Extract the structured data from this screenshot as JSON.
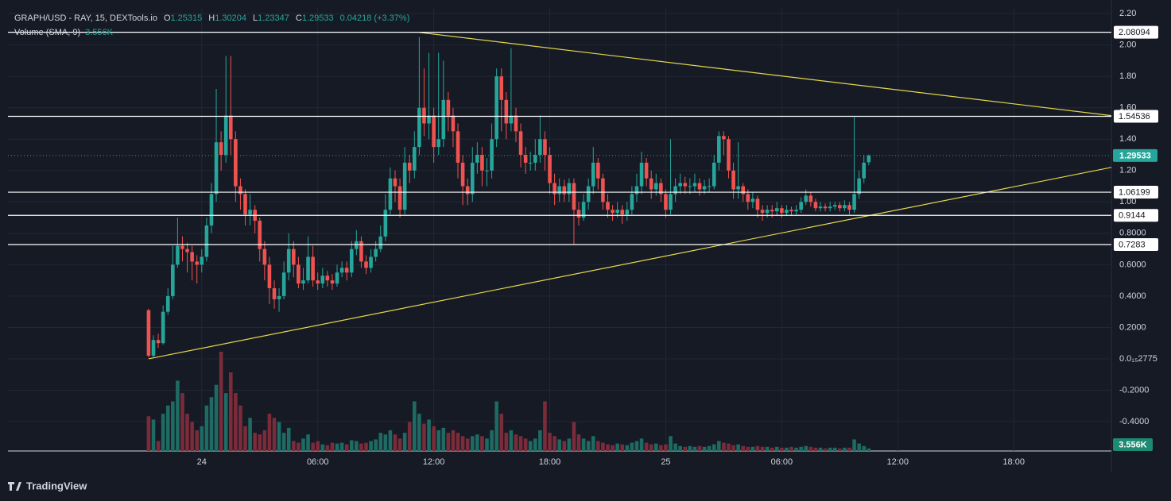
{
  "header": {
    "symbol": "GRAPH/USD - RAY, 15, DEXTools.io",
    "o_label": "O",
    "open": 1.25315,
    "h_label": "H",
    "high": 1.30204,
    "l_label": "L",
    "low": 1.23347,
    "c_label": "C",
    "close": 1.29533,
    "change": "0.04218 (+3.37%)",
    "volume_label": "Volume (SMA, 9)",
    "volume_value": "3.556K"
  },
  "footer": {
    "brand": "TradingView"
  },
  "chart_data": {
    "type": "candlestick",
    "grid": true,
    "colors": {
      "up": "#26a69a",
      "down": "#ef5350",
      "volume_up": "#1d6b63",
      "volume_down": "#7a2c3a",
      "trendline": "#e5d84a",
      "level": "#ffffff"
    },
    "xlim": [
      -29.1,
      199.2
    ],
    "xticks": [
      {
        "value": 11,
        "label": "24"
      },
      {
        "value": 35,
        "label": "06:00"
      },
      {
        "value": 59,
        "label": "12:00"
      },
      {
        "value": 83,
        "label": "18:00"
      },
      {
        "value": 107,
        "label": "25"
      },
      {
        "value": 131,
        "label": "06:00"
      },
      {
        "value": 155,
        "label": "12:00"
      },
      {
        "value": 179,
        "label": "18:00"
      }
    ],
    "ylim": [
      -0.587,
      2.236
    ],
    "yticks": [
      {
        "value": 2.2,
        "label": "2.20"
      },
      {
        "value": 2.0,
        "label": "2.00"
      },
      {
        "value": 1.8,
        "label": "1.80"
      },
      {
        "value": 1.6,
        "label": "1.60"
      },
      {
        "value": 1.4,
        "label": "1.40"
      },
      {
        "value": 1.2,
        "label": "1.20"
      },
      {
        "value": 1.0,
        "label": "1.00"
      },
      {
        "value": 0.8,
        "label": "0.8000"
      },
      {
        "value": 0.6,
        "label": "0.6000"
      },
      {
        "value": 0.4,
        "label": "0.4000"
      },
      {
        "value": 0.2,
        "label": "0.2000"
      },
      {
        "value": 0,
        "label": "0.0₁₅2775"
      },
      {
        "value": -0.2,
        "label": "-0.2000"
      },
      {
        "value": -0.4,
        "label": "-0.4000"
      }
    ],
    "open": [
      0.31,
      0.02,
      0.12,
      0.1,
      0.3,
      0.4,
      0.6,
      0.72,
      0.7,
      0.68,
      0.62,
      0.6,
      0.65,
      0.85,
      1.05,
      1.38,
      1.3,
      1.55,
      1.4,
      1.1,
      1.05,
      0.92,
      0.95,
      0.88,
      0.7,
      0.6,
      0.45,
      0.38,
      0.4,
      0.55,
      0.7,
      0.6,
      0.48,
      0.5,
      0.65,
      0.5,
      0.48,
      0.53,
      0.5,
      0.48,
      0.55,
      0.58,
      0.55,
      0.7,
      0.75,
      0.62,
      0.58,
      0.65,
      0.7,
      0.78,
      0.95,
      1.15,
      1.1,
      0.95,
      1.25,
      1.2,
      1.35,
      1.6,
      1.5,
      1.55,
      1.35,
      1.4,
      1.65,
      1.55,
      1.45,
      1.25,
      1.1,
      1.05,
      1.25,
      1.3,
      1.2,
      1.2,
      1.4,
      1.8,
      1.65,
      1.5,
      1.55,
      1.45,
      1.3,
      1.25,
      1.25,
      1.3,
      1.4,
      1.3,
      1.12,
      1.05,
      1.1,
      1.05,
      1.12,
      0.95,
      0.9,
      1.0,
      1.1,
      1.25,
      1.15,
      1.0,
      0.95,
      0.93,
      0.95,
      0.92,
      0.95,
      1.05,
      1.1,
      1.25,
      1.15,
      1.08,
      1.12,
      1.05,
      0.95,
      1.05,
      1.1,
      1.12,
      1.1,
      1.1,
      1.12,
      1.08,
      1.1,
      1.1,
      1.25,
      1.42,
      1.4,
      1.2,
      1.08,
      1.1,
      1.05,
      1.0,
      1.02,
      0.95,
      0.93,
      0.95,
      0.94,
      0.96,
      0.93,
      0.95,
      0.94,
      0.95,
      1.0,
      1.04,
      1.0,
      0.96,
      0.97,
      0.96,
      0.97,
      0.98,
      0.96,
      0.98,
      0.95,
      1.05,
      1.15,
      1.25315
    ],
    "high": [
      0.32,
      0.15,
      0.16,
      0.34,
      0.45,
      0.72,
      0.9,
      0.78,
      0.74,
      0.72,
      0.66,
      0.7,
      0.9,
      1.12,
      1.72,
      1.45,
      1.93,
      1.93,
      1.45,
      1.15,
      1.08,
      1.05,
      0.98,
      0.9,
      0.75,
      0.65,
      0.5,
      0.45,
      0.62,
      0.8,
      0.75,
      0.65,
      0.58,
      0.78,
      0.72,
      0.55,
      0.58,
      0.56,
      0.54,
      0.6,
      0.62,
      0.62,
      0.75,
      0.82,
      0.78,
      0.66,
      0.7,
      0.75,
      0.85,
      1.05,
      1.22,
      1.2,
      1.15,
      1.35,
      1.3,
      1.45,
      2.05,
      1.85,
      1.95,
      1.6,
      1.95,
      1.9,
      1.7,
      1.6,
      1.5,
      1.3,
      1.15,
      1.35,
      1.38,
      1.35,
      1.28,
      1.5,
      1.85,
      1.85,
      1.7,
      1.98,
      1.6,
      1.5,
      1.35,
      1.32,
      1.4,
      1.55,
      1.45,
      1.35,
      1.18,
      1.15,
      1.14,
      1.15,
      1.15,
      1.0,
      1.05,
      1.15,
      1.35,
      1.28,
      1.18,
      1.05,
      0.98,
      1.0,
      0.98,
      1.0,
      1.1,
      1.18,
      1.32,
      1.28,
      1.2,
      1.18,
      1.15,
      1.08,
      1.4,
      1.15,
      1.18,
      1.16,
      1.15,
      1.18,
      1.15,
      1.14,
      1.15,
      1.3,
      1.45,
      1.45,
      1.42,
      1.25,
      1.38,
      1.12,
      1.08,
      1.06,
      1.04,
      0.98,
      0.98,
      0.98,
      1.0,
      0.98,
      0.98,
      0.97,
      0.98,
      1.03,
      1.08,
      1.06,
      1.02,
      1.0,
      0.99,
      1.0,
      1.0,
      1.0,
      1.01,
      1.0,
      1.54,
      1.2,
      1.3,
      1.30204
    ],
    "low": [
      0.01,
      0.01,
      0.07,
      0.09,
      0.28,
      0.38,
      0.58,
      0.62,
      0.55,
      0.5,
      0.48,
      0.55,
      0.62,
      0.8,
      1.0,
      1.2,
      1.25,
      1.3,
      1.0,
      0.95,
      0.85,
      0.85,
      0.8,
      0.62,
      0.5,
      0.35,
      0.32,
      0.3,
      0.38,
      0.5,
      0.52,
      0.45,
      0.44,
      0.48,
      0.46,
      0.44,
      0.45,
      0.46,
      0.44,
      0.46,
      0.52,
      0.5,
      0.52,
      0.66,
      0.58,
      0.54,
      0.55,
      0.62,
      0.68,
      0.75,
      0.92,
      1.0,
      0.9,
      0.92,
      1.12,
      1.15,
      1.3,
      1.42,
      1.4,
      1.25,
      1.3,
      1.35,
      1.45,
      1.35,
      1.15,
      0.98,
      0.98,
      1.0,
      1.18,
      1.1,
      1.1,
      1.15,
      1.35,
      1.45,
      1.4,
      1.45,
      1.38,
      1.22,
      1.18,
      1.2,
      1.2,
      1.25,
      1.2,
      1.05,
      0.98,
      1.0,
      1.0,
      1.0,
      0.73,
      0.85,
      0.88,
      0.95,
      1.05,
      1.08,
      0.95,
      0.9,
      0.88,
      0.9,
      0.86,
      0.88,
      0.92,
      1.0,
      1.05,
      1.1,
      1.02,
      1.04,
      1.0,
      0.9,
      0.92,
      1.0,
      1.05,
      1.05,
      1.05,
      1.06,
      1.04,
      1.05,
      1.06,
      1.08,
      1.2,
      1.3,
      1.15,
      1.02,
      1.02,
      1.0,
      0.95,
      0.96,
      0.9,
      0.88,
      0.9,
      0.9,
      0.91,
      0.9,
      0.91,
      0.91,
      0.92,
      0.93,
      0.98,
      0.97,
      0.94,
      0.94,
      0.94,
      0.94,
      0.95,
      0.94,
      0.94,
      0.92,
      0.93,
      1.02,
      1.12,
      1.23347
    ],
    "close": [
      0.02,
      0.12,
      0.1,
      0.3,
      0.4,
      0.6,
      0.72,
      0.7,
      0.68,
      0.62,
      0.6,
      0.65,
      0.85,
      1.05,
      1.38,
      1.3,
      1.55,
      1.4,
      1.1,
      1.05,
      0.92,
      0.95,
      0.88,
      0.7,
      0.6,
      0.45,
      0.38,
      0.4,
      0.55,
      0.7,
      0.6,
      0.48,
      0.5,
      0.65,
      0.5,
      0.48,
      0.53,
      0.5,
      0.48,
      0.55,
      0.58,
      0.55,
      0.7,
      0.75,
      0.62,
      0.58,
      0.65,
      0.7,
      0.78,
      0.95,
      1.15,
      1.1,
      0.95,
      1.25,
      1.2,
      1.35,
      1.6,
      1.5,
      1.55,
      1.35,
      1.4,
      1.65,
      1.55,
      1.45,
      1.25,
      1.1,
      1.05,
      1.25,
      1.3,
      1.2,
      1.2,
      1.4,
      1.8,
      1.65,
      1.5,
      1.55,
      1.45,
      1.3,
      1.25,
      1.25,
      1.3,
      1.4,
      1.3,
      1.12,
      1.05,
      1.1,
      1.05,
      1.12,
      0.95,
      0.9,
      1.0,
      1.1,
      1.25,
      1.15,
      1.0,
      0.95,
      0.93,
      0.95,
      0.92,
      0.95,
      1.05,
      1.1,
      1.25,
      1.15,
      1.08,
      1.12,
      1.05,
      0.95,
      1.05,
      1.1,
      1.12,
      1.1,
      1.1,
      1.12,
      1.08,
      1.1,
      1.1,
      1.25,
      1.42,
      1.4,
      1.2,
      1.08,
      1.1,
      1.05,
      1.0,
      1.02,
      0.95,
      0.93,
      0.95,
      0.94,
      0.96,
      0.93,
      0.95,
      0.94,
      0.95,
      1.0,
      1.04,
      1.0,
      0.96,
      0.97,
      0.96,
      0.97,
      0.98,
      0.96,
      0.98,
      0.95,
      1.05,
      1.15,
      1.25,
      1.29533
    ],
    "volume": [
      4.2,
      3.8,
      1.2,
      4.5,
      5.5,
      6,
      8.5,
      7,
      4.5,
      3.5,
      2.5,
      3,
      5.5,
      6.5,
      8,
      12,
      7,
      9.5,
      7,
      5.5,
      3,
      4,
      2.2,
      2,
      2.5,
      4.5,
      4,
      3.5,
      2.2,
      2.8,
      1.2,
      1,
      1.5,
      2,
      1,
      1.2,
      0.8,
      0.7,
      1,
      0.9,
      1,
      0.8,
      1.3,
      1.2,
      0.9,
      1,
      1.2,
      1.4,
      2.2,
      2,
      2.5,
      2,
      1.5,
      2.2,
      3.5,
      6,
      4.5,
      3.3,
      3.8,
      3,
      2.5,
      2.8,
      2.2,
      2.5,
      2.2,
      1.8,
      1.5,
      1.8,
      2,
      1.8,
      1.5,
      2.5,
      6,
      4.5,
      2.2,
      2.5,
      2,
      1.8,
      1.5,
      1.2,
      1.5,
      2.5,
      6,
      2.2,
      1.8,
      1.4,
      1.2,
      1.5,
      3.5,
      2,
      1.5,
      1.2,
      1.8,
      1.2,
      1,
      0.8,
      0.7,
      0.9,
      0.8,
      0.7,
      1,
      1.2,
      1.5,
      1,
      0.8,
      0.9,
      0.7,
      0.8,
      1.8,
      0.9,
      0.6,
      0.5,
      0.6,
      0.5,
      0.6,
      0.5,
      0.6,
      0.8,
      1.2,
      1,
      0.9,
      0.7,
      0.8,
      0.6,
      0.5,
      0.5,
      0.6,
      0.5,
      0.5,
      0.4,
      0.5,
      0.4,
      0.4,
      0.5,
      0.4,
      0.5,
      0.6,
      0.5,
      0.4,
      0.4,
      0.3,
      0.4,
      0.4,
      0.3,
      0.4,
      0.4,
      1.4,
      0.9,
      0.6,
      0.3
    ],
    "volume_ylim": [
      0,
      12
    ],
    "levels": [
      2.08094,
      1.54536,
      1.06199,
      0.9144,
      0.7283
    ],
    "last_price": 1.29533,
    "trendlines": [
      {
        "points": [
          [
            56,
            2.08
          ],
          [
            199.2,
            1.55
          ]
        ]
      },
      {
        "points": [
          [
            0,
            0.0
          ],
          [
            199.2,
            1.22
          ]
        ]
      }
    ]
  }
}
